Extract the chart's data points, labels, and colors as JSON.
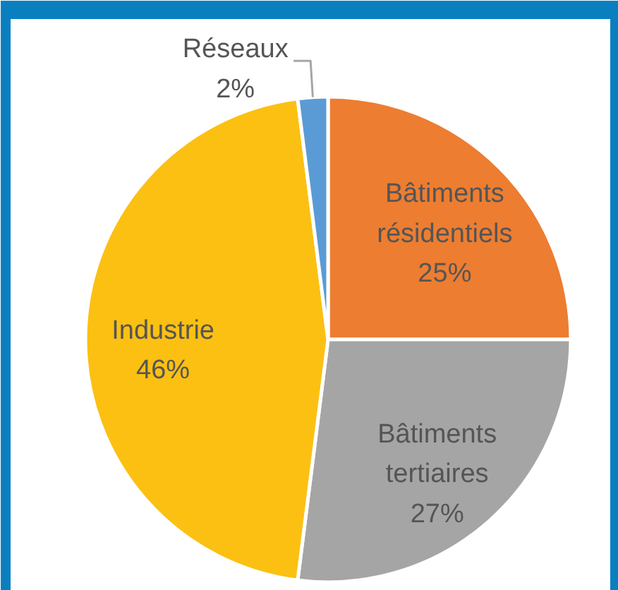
{
  "chart_data": {
    "type": "pie",
    "categories": [
      "Bâtiments résidentiels",
      "Bâtiments tertiaires",
      "Industrie",
      "Réseaux"
    ],
    "values": [
      25,
      27,
      46,
      2
    ],
    "colors": [
      "#ed7d31",
      "#a5a5a5",
      "#fbc012",
      "#5b9bd5"
    ],
    "value_labels": [
      "25%",
      "27%",
      "46%",
      "2%"
    ]
  }
}
